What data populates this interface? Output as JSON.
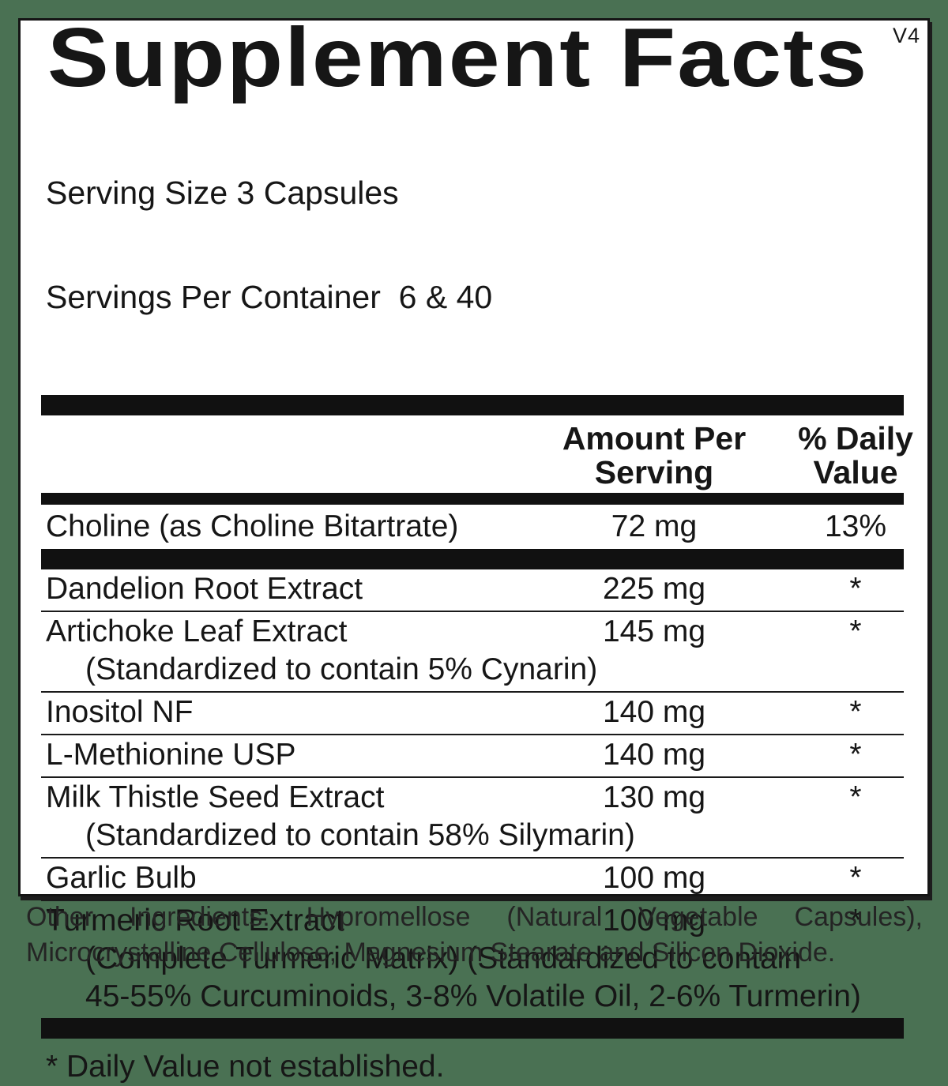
{
  "label": {
    "title": "Supplement Facts",
    "version": "V4",
    "serving_size": "Serving Size 3 Capsules",
    "servings_per_container": "Servings Per Container  6 & 40",
    "columns": {
      "amount_lines": [
        "Amount Per",
        "Serving"
      ],
      "dv_lines": [
        "% Daily",
        "Value"
      ]
    },
    "rows": [
      {
        "name": "Choline (as Choline Bitartrate)",
        "amount": "72 mg",
        "dv": "13%",
        "sublines": []
      },
      {
        "name": "Dandelion Root Extract",
        "amount": "225 mg",
        "dv": "*",
        "sublines": []
      },
      {
        "name": "Artichoke Leaf Extract",
        "amount": "145 mg",
        "dv": "*",
        "sublines": [
          "(Standardized to contain 5% Cynarin)"
        ]
      },
      {
        "name": "Inositol NF",
        "amount": "140 mg",
        "dv": "*",
        "sublines": []
      },
      {
        "name": "L-Methionine USP",
        "amount": "140 mg",
        "dv": "*",
        "sublines": []
      },
      {
        "name": "Milk Thistle Seed Extract",
        "amount": "130 mg",
        "dv": "*",
        "sublines": [
          "(Standardized to contain 58% Silymarin)"
        ]
      },
      {
        "name": "Garlic Bulb",
        "amount": "100 mg",
        "dv": "*",
        "sublines": []
      },
      {
        "name": "Turmeric Root Extract",
        "amount": "100 mg",
        "dv": "*",
        "sublines": [
          "(Complete Turmeric Matrix) (Standardized to contain",
          "45-55% Curcuminoids, 3-8% Volatile Oil, 2-6% Turmerin)"
        ]
      }
    ],
    "footnote": "* Daily Value not established.",
    "other_ingredients": "Other Ingredients: Hypromellose (Natural Vegetable Capsules), Microcrystalline Cellulose, Magnesium Stearate and Silicon Dioxide."
  },
  "colors": {
    "background": "#4a7153",
    "panel": "#ffffff",
    "ink": "#161616"
  }
}
